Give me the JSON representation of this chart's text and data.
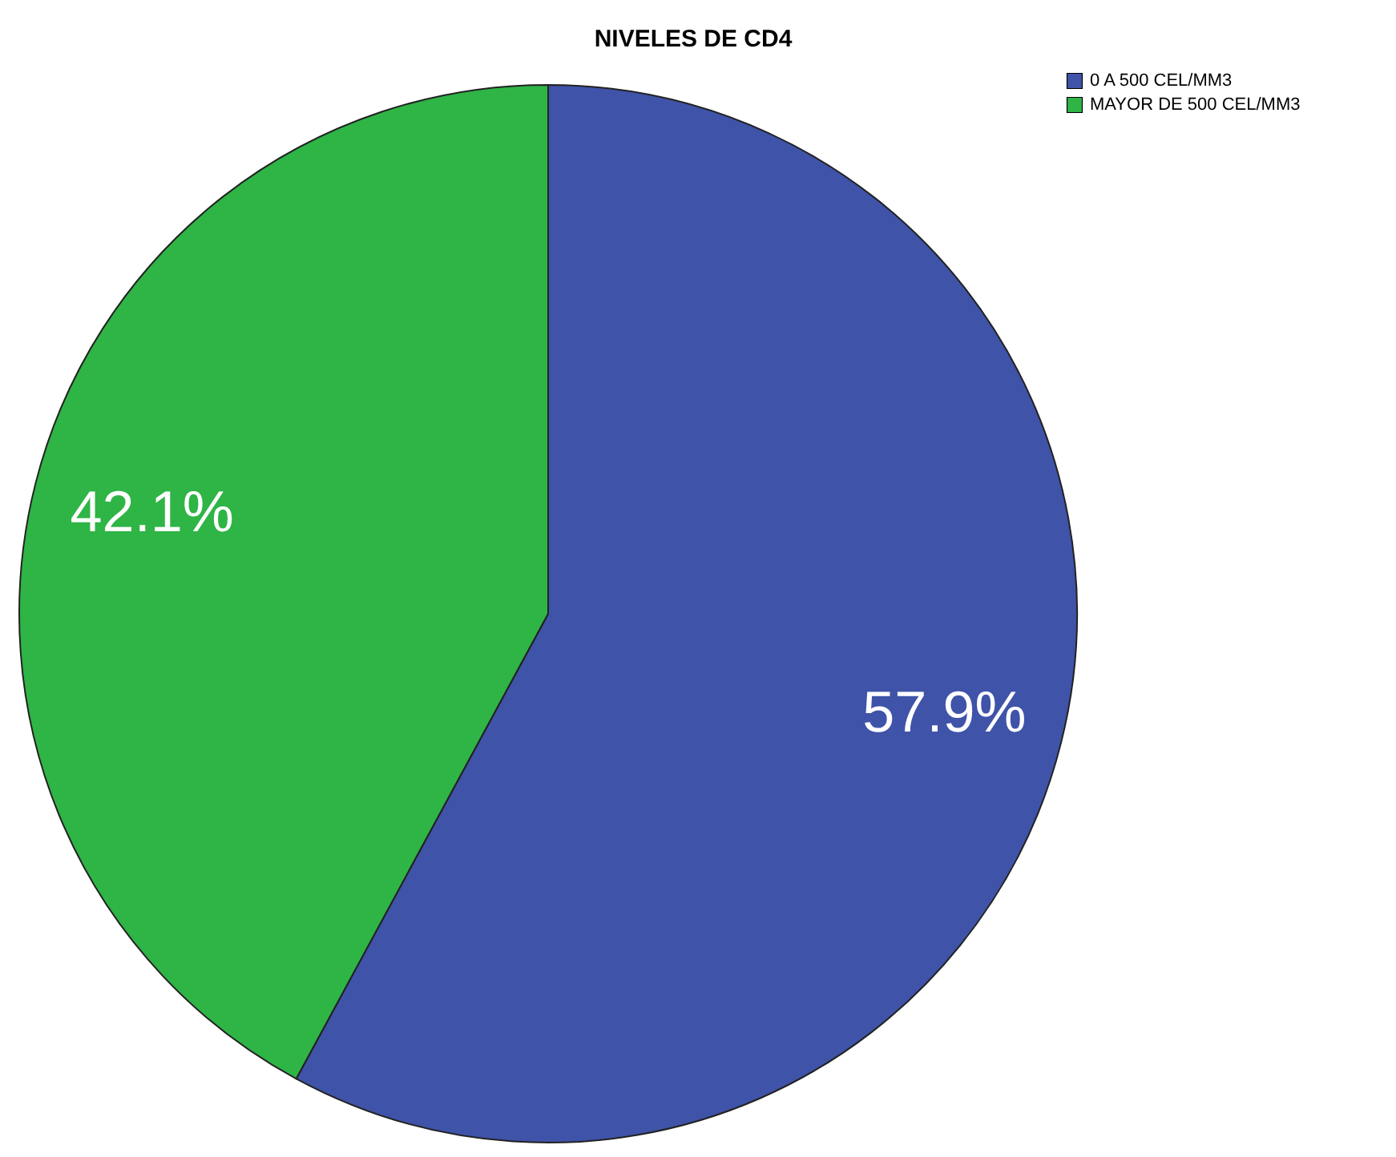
{
  "chart_data": {
    "type": "pie",
    "title": "NIVELES DE CD4",
    "categories": [
      "0 A 500 CEL/MM3",
      "MAYOR DE 500 CEL/MM3"
    ],
    "values": [
      57.9,
      42.1
    ],
    "colors": [
      "#3f53a8",
      "#2fb446"
    ],
    "value_labels": [
      "57.9%",
      "42.1%"
    ],
    "legend": "top right"
  }
}
